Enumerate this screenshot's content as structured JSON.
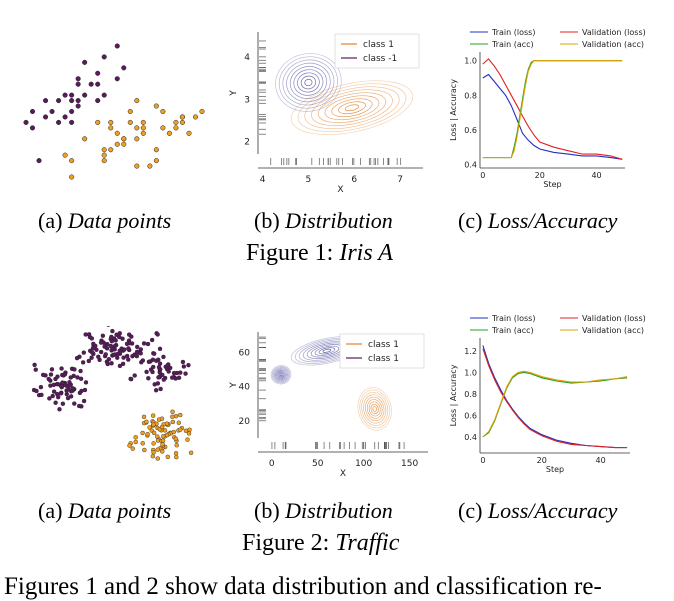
{
  "figures": [
    {
      "title_prefix": "Figure 1:",
      "title_name": "Iris A",
      "captions": [
        {
          "label": "(a)",
          "text": "Data points"
        },
        {
          "label": "(b)",
          "text": "Distribution"
        },
        {
          "label": "(c)",
          "text": "Loss/Accuracy"
        }
      ]
    },
    {
      "title_prefix": "Figure 2:",
      "title_name": "Traffic",
      "captions": [
        {
          "label": "(a)",
          "text": "Data points"
        },
        {
          "label": "(b)",
          "text": "Distribution"
        },
        {
          "label": "(c)",
          "text": "Loss/Accuracy"
        }
      ]
    }
  ],
  "body_text": "Figures 1 and 2 show data distribution and classification re-",
  "colors": {
    "class_a": "#f0a020",
    "class_b": "#5a1a5e",
    "train_loss": "#2030c0",
    "train_acc": "#20a020",
    "val_loss": "#e02020",
    "val_acc": "#e0a000",
    "contour_a": "#e0802a",
    "contour_b": "#5050a0"
  },
  "chart_data": [
    {
      "type": "scatter",
      "figure": "Figure 1 (a)",
      "series": [
        {
          "name": "",
          "color": "#5a1a5e",
          "points": [
            [
              4.9,
              3.5
            ],
            [
              5.0,
              3.4
            ],
            [
              5.4,
              3.9
            ],
            [
              4.6,
              3.4
            ],
            [
              5.1,
              3.7
            ],
            [
              4.8,
              3.0
            ],
            [
              5.7,
              4.4
            ],
            [
              5.4,
              3.4
            ],
            [
              5.2,
              3.5
            ],
            [
              4.7,
              3.2
            ],
            [
              5.5,
              3.5
            ],
            [
              5.0,
              3.0
            ],
            [
              4.4,
              2.9
            ],
            [
              5.1,
              3.8
            ],
            [
              5.8,
              4.0
            ],
            [
              5.3,
              3.7
            ],
            [
              4.8,
              3.4
            ],
            [
              5.0,
              3.2
            ],
            [
              5.1,
              3.3
            ],
            [
              4.3,
              3.0
            ],
            [
              5.2,
              4.1
            ],
            [
              5.5,
              4.2
            ],
            [
              4.9,
              3.1
            ],
            [
              5.0,
              3.5
            ],
            [
              4.5,
              2.3
            ],
            [
              5.4,
              3.7
            ],
            [
              4.6,
              3.1
            ],
            [
              5.1,
              3.4
            ],
            [
              5.7,
              3.8
            ],
            [
              4.4,
              3.2
            ]
          ]
        },
        {
          "name": "",
          "color": "#f0a020",
          "points": [
            [
              7.0,
              3.2
            ],
            [
              6.4,
              3.2
            ],
            [
              6.9,
              3.1
            ],
            [
              5.5,
              2.3
            ],
            [
              6.5,
              2.8
            ],
            [
              5.7,
              2.8
            ],
            [
              6.3,
              3.3
            ],
            [
              4.9,
              2.4
            ],
            [
              6.6,
              2.9
            ],
            [
              5.2,
              2.7
            ],
            [
              5.0,
              2.0
            ],
            [
              5.9,
              3.0
            ],
            [
              6.0,
              2.2
            ],
            [
              6.1,
              2.9
            ],
            [
              5.6,
              2.9
            ],
            [
              6.7,
              3.1
            ],
            [
              5.8,
              2.7
            ],
            [
              6.2,
              2.2
            ],
            [
              5.6,
              2.5
            ],
            [
              5.9,
              3.2
            ],
            [
              6.3,
              2.5
            ],
            [
              6.1,
              2.8
            ],
            [
              6.4,
              2.9
            ],
            [
              6.6,
              3.0
            ],
            [
              6.8,
              2.8
            ],
            [
              6.7,
              3.0
            ],
            [
              6.0,
              2.9
            ],
            [
              5.7,
              2.6
            ],
            [
              5.5,
              2.4
            ],
            [
              5.8,
              2.7
            ],
            [
              6.0,
              2.7
            ],
            [
              5.4,
              3.0
            ],
            [
              6.0,
              3.4
            ],
            [
              6.7,
              3.1
            ],
            [
              6.3,
              2.3
            ],
            [
              5.6,
              3.0
            ],
            [
              5.5,
              2.5
            ],
            [
              6.1,
              3.0
            ],
            [
              5.8,
              2.6
            ],
            [
              5.0,
              2.3
            ]
          ]
        }
      ]
    },
    {
      "type": "contour",
      "figure": "Figure 1 (b)",
      "legend": [
        "class 1",
        "class -1"
      ],
      "xlabel": "X",
      "ylabel": "Y",
      "xticks": [
        "4",
        "5",
        "6",
        "7"
      ],
      "yticks": [
        "2",
        "3",
        "4"
      ],
      "xlim": [
        3.9,
        7.5
      ],
      "ylim": [
        1.7,
        4.6
      ],
      "gaussians": [
        {
          "class": "class -1",
          "color": "#5050a0",
          "cx": 5.0,
          "cy": 3.4,
          "sx": 0.4,
          "sy": 0.38
        },
        {
          "class": "class 1",
          "color": "#e0802a",
          "cx": 5.95,
          "cy": 2.8,
          "sx": 0.75,
          "sy": 0.32
        }
      ]
    },
    {
      "type": "line",
      "figure": "Figure 1 (c)",
      "xlabel": "Step",
      "ylabel": "Loss | Accuracy",
      "xticks": [
        "0",
        "20",
        "40"
      ],
      "yticks": [
        "0.4",
        "0.6",
        "0.8",
        "1.0"
      ],
      "xlim": [
        -1,
        50
      ],
      "ylim": [
        0.38,
        1.05
      ],
      "series": [
        {
          "name": "Train (loss)",
          "color": "#2030c0",
          "x": [
            0,
            2,
            4,
            6,
            8,
            10,
            12,
            14,
            16,
            18,
            20,
            25,
            30,
            35,
            40,
            45,
            49
          ],
          "y": [
            0.9,
            0.92,
            0.88,
            0.84,
            0.8,
            0.74,
            0.66,
            0.58,
            0.54,
            0.51,
            0.49,
            0.47,
            0.46,
            0.45,
            0.45,
            0.44,
            0.43
          ]
        },
        {
          "name": "Validation (loss)",
          "color": "#e02020",
          "x": [
            0,
            2,
            4,
            6,
            8,
            10,
            12,
            14,
            16,
            18,
            20,
            25,
            30,
            35,
            40,
            45,
            49
          ],
          "y": [
            0.98,
            1.01,
            0.97,
            0.92,
            0.86,
            0.8,
            0.74,
            0.68,
            0.62,
            0.57,
            0.53,
            0.5,
            0.48,
            0.46,
            0.46,
            0.45,
            0.43
          ]
        },
        {
          "name": "Train (acc)",
          "color": "#20a020",
          "x": [
            0,
            10,
            11,
            12,
            13,
            14,
            15,
            16,
            17,
            18,
            20,
            30,
            40,
            49
          ],
          "y": [
            0.44,
            0.44,
            0.5,
            0.58,
            0.68,
            0.78,
            0.88,
            0.95,
            0.99,
            1.0,
            1.0,
            1.0,
            1.0,
            1.0
          ]
        },
        {
          "name": "Validation (acc)",
          "color": "#e0a000",
          "x": [
            0,
            10,
            11,
            12,
            13,
            14,
            15,
            16,
            17,
            18,
            20,
            30,
            40,
            49
          ],
          "y": [
            0.44,
            0.44,
            0.48,
            0.56,
            0.66,
            0.76,
            0.86,
            0.94,
            0.98,
            1.0,
            1.0,
            1.0,
            1.0,
            1.0
          ]
        }
      ]
    },
    {
      "type": "scatter",
      "figure": "Figure 2 (a)",
      "series": [
        {
          "name": "",
          "color": "#5a1a5e",
          "clusters": [
            [
              0.25,
              0.4,
              0.08,
              0.09,
              70
            ],
            [
              0.5,
              0.15,
              0.12,
              0.08,
              90
            ],
            [
              0.72,
              0.3,
              0.09,
              0.08,
              50
            ]
          ]
        },
        {
          "name": "",
          "color": "#f0a020",
          "clusters": [
            [
              0.72,
              0.72,
              0.1,
              0.12,
              80
            ]
          ]
        }
      ]
    },
    {
      "type": "contour",
      "figure": "Figure 2 (b)",
      "legend": [
        "class 1",
        "class 1"
      ],
      "xlabel": "X",
      "ylabel": "Y",
      "xticks": [
        "0",
        "50",
        "100",
        "150"
      ],
      "yticks": [
        "20",
        "40",
        "60"
      ],
      "xlim": [
        -15,
        170
      ],
      "ylim": [
        10,
        72
      ],
      "gaussians": [
        {
          "class": "class 1",
          "color": "#5050a0",
          "cx": 60,
          "cy": 61,
          "sx": 22,
          "sy": 4
        },
        {
          "class": "class 1",
          "color": "#5050a0",
          "cx": 10,
          "cy": 47,
          "sx": 6,
          "sy": 3
        },
        {
          "class": "class 1",
          "color": "#e0802a",
          "cx": 112,
          "cy": 27,
          "sx": 10,
          "sy": 7
        }
      ]
    },
    {
      "type": "line",
      "figure": "Figure 2 (c)",
      "xlabel": "Step",
      "ylabel": "Loss | Accuracy",
      "xticks": [
        "0",
        "20",
        "40"
      ],
      "yticks": [
        "0.4",
        "0.6",
        "0.8",
        "1.0",
        "1.2"
      ],
      "xlim": [
        -1,
        50
      ],
      "ylim": [
        0.25,
        1.32
      ],
      "series": [
        {
          "name": "Train (loss)",
          "color": "#2030c0",
          "x": [
            0,
            2,
            4,
            6,
            8,
            10,
            12,
            14,
            16,
            18,
            20,
            25,
            30,
            35,
            40,
            45,
            49
          ],
          "y": [
            1.25,
            1.08,
            0.95,
            0.84,
            0.74,
            0.66,
            0.59,
            0.53,
            0.48,
            0.45,
            0.42,
            0.37,
            0.34,
            0.32,
            0.31,
            0.3,
            0.3
          ]
        },
        {
          "name": "Validation (loss)",
          "color": "#e02020",
          "x": [
            0,
            2,
            4,
            6,
            8,
            10,
            12,
            14,
            16,
            18,
            20,
            25,
            30,
            35,
            40,
            45,
            49
          ],
          "y": [
            1.22,
            1.06,
            0.93,
            0.82,
            0.73,
            0.65,
            0.58,
            0.52,
            0.47,
            0.44,
            0.41,
            0.36,
            0.33,
            0.32,
            0.31,
            0.3,
            0.3
          ]
        },
        {
          "name": "Train (acc)",
          "color": "#20a020",
          "x": [
            0,
            2,
            4,
            6,
            8,
            10,
            12,
            14,
            16,
            18,
            20,
            25,
            30,
            35,
            40,
            45,
            49
          ],
          "y": [
            0.4,
            0.44,
            0.55,
            0.7,
            0.85,
            0.95,
            0.99,
            1.0,
            0.99,
            0.97,
            0.95,
            0.92,
            0.9,
            0.91,
            0.92,
            0.94,
            0.95
          ]
        },
        {
          "name": "Validation (acc)",
          "color": "#e0a000",
          "x": [
            0,
            2,
            4,
            6,
            8,
            10,
            12,
            14,
            16,
            18,
            20,
            25,
            30,
            35,
            40,
            45,
            49
          ],
          "y": [
            0.4,
            0.45,
            0.56,
            0.71,
            0.86,
            0.96,
            1.0,
            1.01,
            1.0,
            0.98,
            0.96,
            0.93,
            0.91,
            0.91,
            0.93,
            0.94,
            0.96
          ]
        }
      ]
    }
  ]
}
